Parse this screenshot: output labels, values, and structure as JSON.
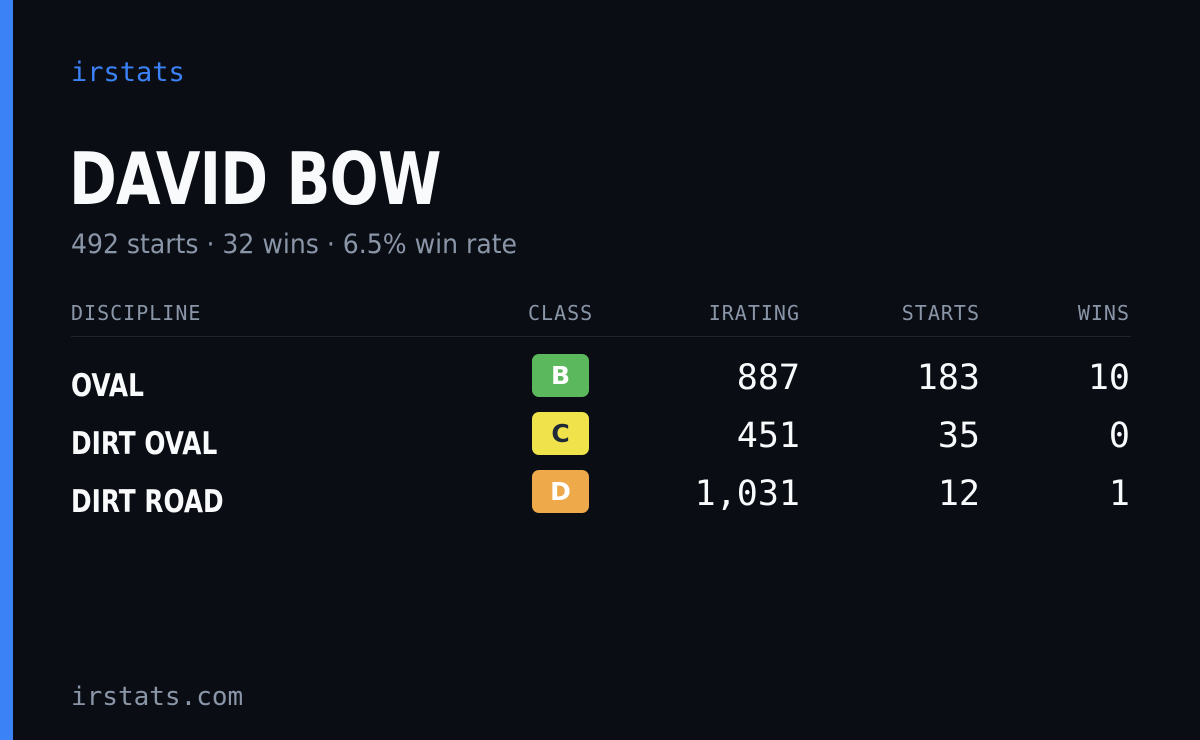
{
  "brand": "irstats",
  "driver": {
    "name": "DAVID BOW",
    "summary": "492 starts · 32 wins · 6.5% win rate"
  },
  "table": {
    "headers": {
      "discipline": "DISCIPLINE",
      "class": "CLASS",
      "irating": "IRATING",
      "starts": "STARTS",
      "wins": "WINS"
    },
    "rows": [
      {
        "discipline": "OVAL",
        "class": "B",
        "class_color": "#5cb85c",
        "class_text_color": "#ffffff",
        "irating": "887",
        "starts": "183",
        "wins": "10"
      },
      {
        "discipline": "DIRT OVAL",
        "class": "C",
        "class_color": "#f0e24a",
        "class_text_color": "#1f2937",
        "irating": "451",
        "starts": "35",
        "wins": "0"
      },
      {
        "discipline": "DIRT ROAD",
        "class": "D",
        "class_color": "#eea94b",
        "class_text_color": "#ffffff",
        "irating": "1,031",
        "starts": "12",
        "wins": "1"
      }
    ]
  },
  "footer": "irstats.com",
  "colors": {
    "accent": "#3b82f6",
    "background": "#0a0d14",
    "text_primary": "#f8fafc",
    "text_muted": "#8a96a8"
  }
}
